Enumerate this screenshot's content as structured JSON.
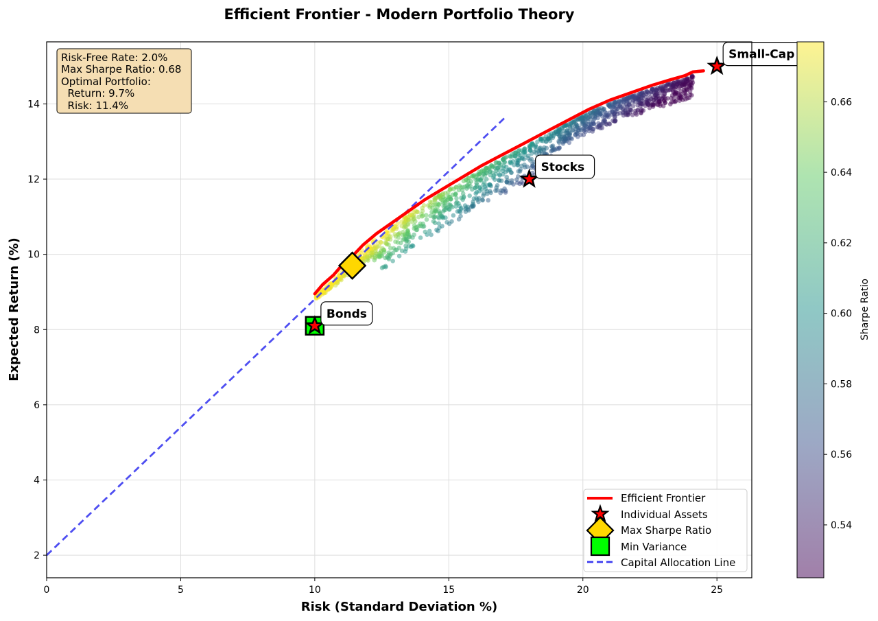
{
  "colors": {
    "frontier": "#ff0000",
    "cal": "#3b3bf0",
    "max_sharpe": "#ffd700",
    "min_variance": "#00ff00",
    "asset_star": "#ff0000",
    "info_box": "#f5deb3",
    "grid": "#dddddd"
  },
  "chart_data": {
    "type": "scatter",
    "title": "Efficient Frontier - Modern Portfolio Theory",
    "xlabel": "Risk (Standard Deviation %)",
    "ylabel": "Expected Return (%)",
    "xlim": [
      0,
      26.3
    ],
    "ylim": [
      1.4,
      15.65
    ],
    "xticks": [
      0,
      5,
      10,
      15,
      20,
      25
    ],
    "yticks": [
      2,
      4,
      6,
      8,
      10,
      12,
      14
    ],
    "grid": true,
    "risk_free_rate": 2.0,
    "efficient_frontier": {
      "name": "Efficient Frontier",
      "x": [
        10.0,
        10.3,
        10.7,
        11.0,
        11.4,
        11.8,
        12.3,
        12.9,
        13.5,
        14.1,
        14.8,
        15.5,
        16.2,
        17.0,
        17.8,
        18.6,
        19.4,
        20.2,
        21.0,
        21.8,
        22.6,
        23.3,
        23.8,
        24.1,
        24.5
      ],
      "y": [
        8.95,
        9.2,
        9.45,
        9.7,
        9.95,
        10.25,
        10.55,
        10.85,
        11.15,
        11.45,
        11.75,
        12.05,
        12.35,
        12.65,
        12.95,
        13.25,
        13.55,
        13.85,
        14.1,
        14.3,
        14.5,
        14.65,
        14.75,
        14.85,
        14.88
      ]
    },
    "capital_allocation_line": {
      "name": "Capital Allocation Line",
      "x": [
        0,
        17.1
      ],
      "y": [
        2.0,
        13.64
      ]
    },
    "max_sharpe_portfolio": {
      "name": "Max Sharpe Ratio",
      "x": 11.4,
      "y": 9.7
    },
    "min_variance_portfolio": {
      "name": "Min Variance",
      "x": 10.0,
      "y": 8.1
    },
    "assets": {
      "name": "Individual Assets",
      "points": [
        {
          "label": "Bonds",
          "x": 10.0,
          "y": 8.1
        },
        {
          "label": "Stocks",
          "x": 18.0,
          "y": 12.0
        },
        {
          "label": "Small-Cap",
          "x": 25.0,
          "y": 15.0
        }
      ]
    },
    "colorbar": {
      "label": "Sharpe Ratio",
      "min": 0.525,
      "max": 0.677,
      "ticks": [
        0.54,
        0.56,
        0.58,
        0.6,
        0.62,
        0.64,
        0.66
      ]
    },
    "legend": {
      "placement": "lower-right",
      "entries": [
        "Efficient Frontier",
        "Individual Assets",
        "Max Sharpe Ratio",
        "Min Variance",
        "Capital Allocation Line"
      ]
    },
    "info_box": {
      "lines": [
        "Risk-Free Rate: 2.0%",
        "Max Sharpe Ratio: 0.68",
        "Optimal Portfolio:",
        "  Return: 9.7%",
        "  Risk: 11.4%"
      ]
    }
  }
}
